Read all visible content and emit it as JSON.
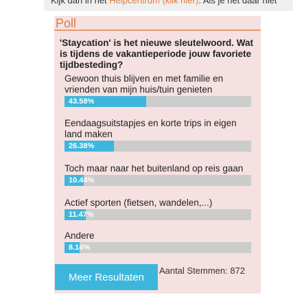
{
  "topbar": {
    "prefix": "Kijk dan in het ",
    "link": "Helpcentrum (klik hier)",
    "suffix": ". Als je het daar niet"
  },
  "poll": {
    "title": "Poll",
    "question": "'Staycation' is het nieuwe sleutelwoord. Wat is tijdens de vakantieperiode jouw favoriete tijdbesteding?",
    "options": [
      {
        "label": "Gewoon thuis blijven en met familie en vrienden van mijn huis/tuin genieten",
        "percent_text": "43.58%",
        "percent": 43.58
      },
      {
        "label": "Eendaagsuitstapjes en korte trips in eigen land maken",
        "percent_text": "26.38%",
        "percent": 26.38
      },
      {
        "label": "Toch maar naar het buitenland op reis gaan",
        "percent_text": "10.44%",
        "percent": 10.44
      },
      {
        "label": "Actief sporten (fietsen, wandelen,...)",
        "percent_text": "11.47%",
        "percent": 11.47
      },
      {
        "label": "Andere",
        "percent_text": "8.14%",
        "percent": 8.14
      }
    ],
    "more_button": "Meer Resultaten",
    "votes_text": "Aantal Stemmen: 872"
  },
  "colors": {
    "accent": "#e07a3f",
    "bar": "#3eb6dc",
    "track": "#cccccc",
    "panel": "#f5e1e1"
  }
}
